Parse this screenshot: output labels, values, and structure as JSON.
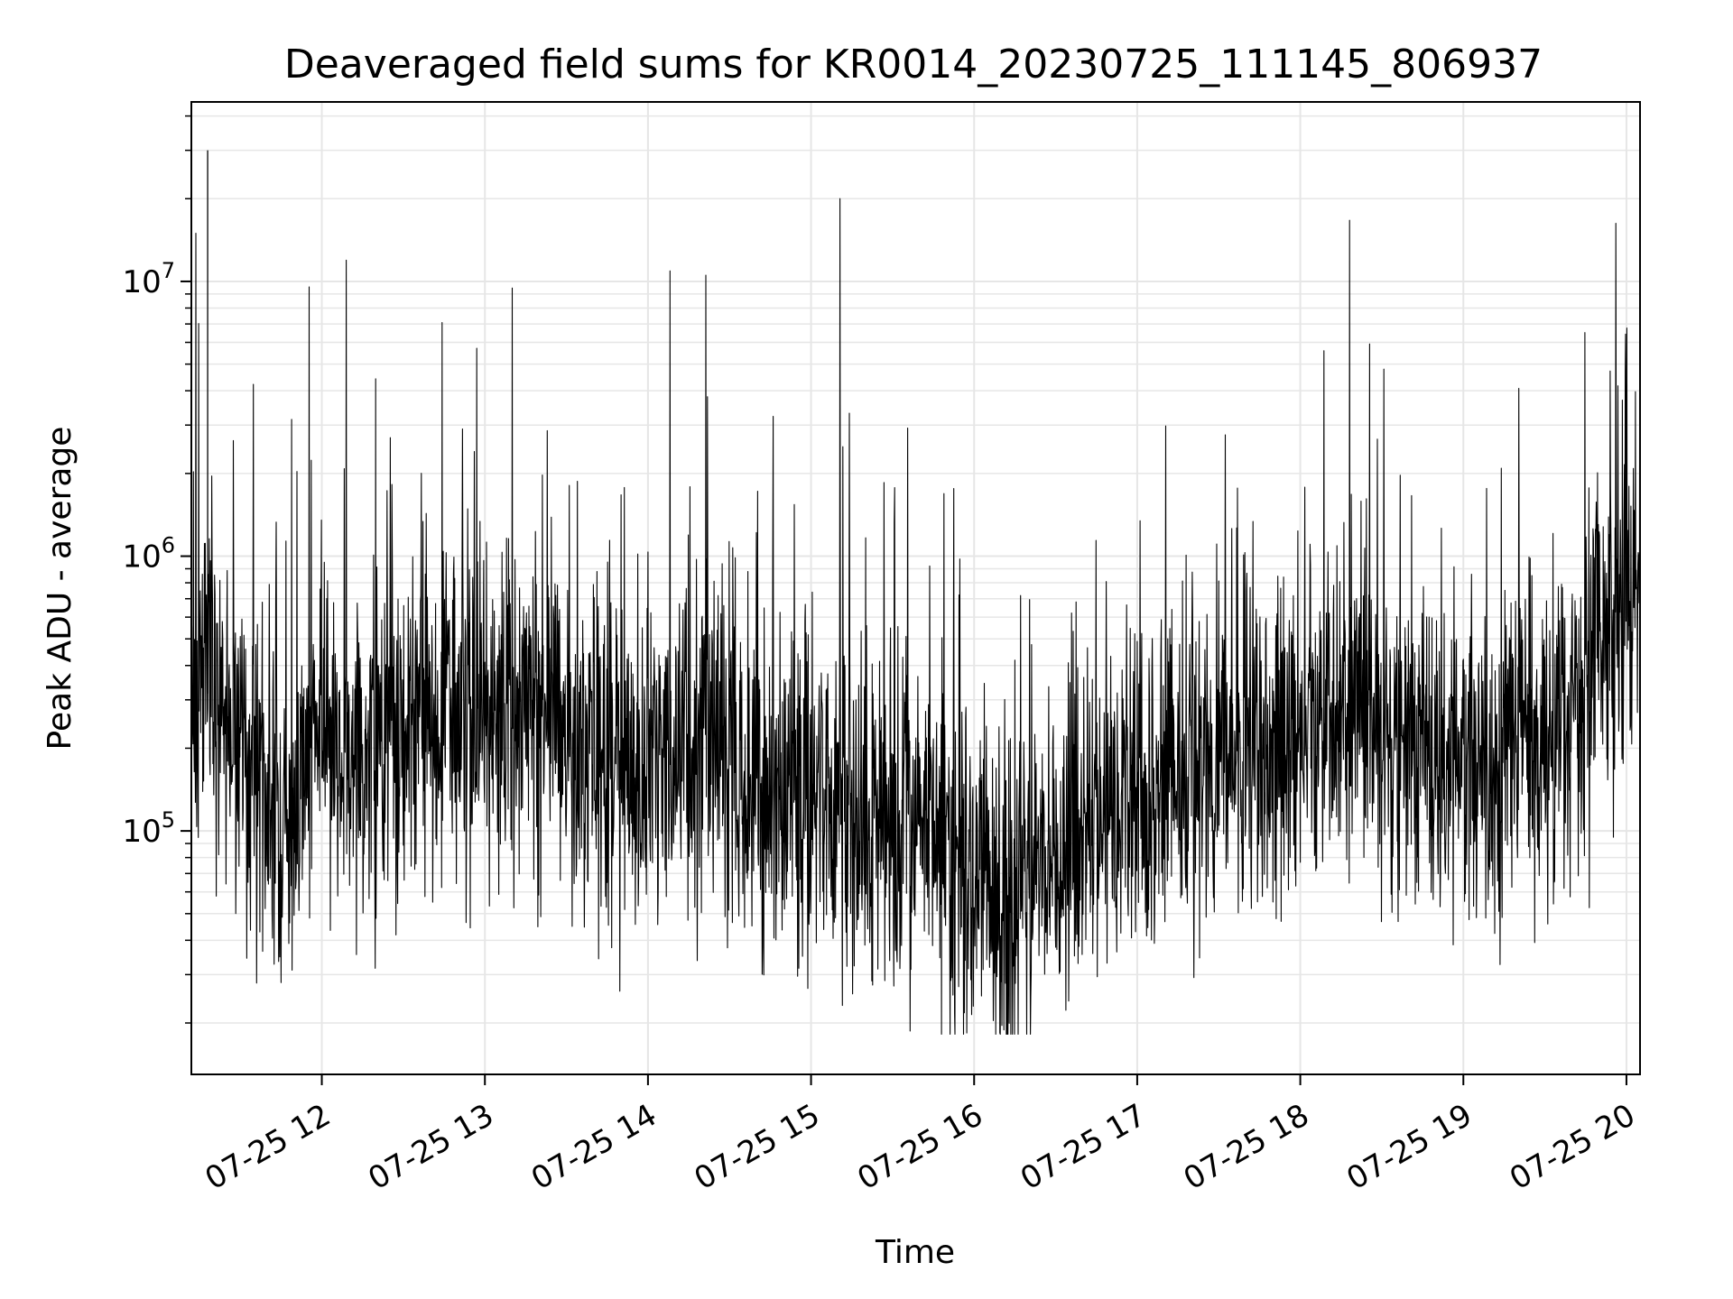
{
  "chart_data": {
    "type": "line",
    "title": "Deaveraged field sums for KR0014_20230725_111145_806937",
    "xlabel": "Time",
    "ylabel": "Peak ADU - average",
    "x_range": [
      "07-25 11:12",
      "07-25 20:05"
    ],
    "x_ticks": [
      "07-25 12",
      "07-25 13",
      "07-25 14",
      "07-25 15",
      "07-25 16",
      "07-25 17",
      "07-25 18",
      "07-25 19",
      "07-25 20"
    ],
    "y_scale": "log",
    "ylim": [
      13000,
      45000000
    ],
    "y_ticks": [
      {
        "base": "10",
        "exp": "5",
        "value": 100000
      },
      {
        "base": "10",
        "exp": "6",
        "value": 1000000
      },
      {
        "base": "10",
        "exp": "7",
        "value": 10000000
      }
    ],
    "grid": true,
    "line_color": "#000000",
    "grid_color": "#e6e6e6",
    "series": [
      {
        "name": "",
        "x": [
          "07-25 11:12",
          "07-25 11:15",
          "07-25 11:18",
          "07-25 11:21",
          "07-25 11:24",
          "07-25 11:30",
          "07-25 11:36",
          "07-25 11:42",
          "07-25 11:48",
          "07-25 11:54",
          "07-25 12:00",
          "07-25 12:06",
          "07-25 12:12",
          "07-25 12:18",
          "07-25 12:24",
          "07-25 12:30",
          "07-25 12:36",
          "07-25 12:42",
          "07-25 12:48",
          "07-25 12:54",
          "07-25 13:00",
          "07-25 13:06",
          "07-25 13:12",
          "07-25 13:18",
          "07-25 13:24",
          "07-25 13:30",
          "07-25 13:36",
          "07-25 13:42",
          "07-25 13:48",
          "07-25 13:54",
          "07-25 14:00",
          "07-25 14:06",
          "07-25 14:12",
          "07-25 14:18",
          "07-25 14:24",
          "07-25 14:30",
          "07-25 14:36",
          "07-25 14:42",
          "07-25 14:48",
          "07-25 14:54",
          "07-25 15:00",
          "07-25 15:06",
          "07-25 15:12",
          "07-25 15:18",
          "07-25 15:24",
          "07-25 15:30",
          "07-25 15:36",
          "07-25 15:42",
          "07-25 15:48",
          "07-25 15:54",
          "07-25 16:00",
          "07-25 16:06",
          "07-25 16:12",
          "07-25 16:18",
          "07-25 16:24",
          "07-25 16:30",
          "07-25 16:36",
          "07-25 16:42",
          "07-25 16:48",
          "07-25 16:54",
          "07-25 17:00",
          "07-25 17:06",
          "07-25 17:12",
          "07-25 17:18",
          "07-25 17:24",
          "07-25 17:30",
          "07-25 17:36",
          "07-25 17:42",
          "07-25 17:48",
          "07-25 17:54",
          "07-25 18:00",
          "07-25 18:06",
          "07-25 18:12",
          "07-25 18:18",
          "07-25 18:24",
          "07-25 18:30",
          "07-25 18:36",
          "07-25 18:42",
          "07-25 18:48",
          "07-25 18:54",
          "07-25 19:00",
          "07-25 19:06",
          "07-25 19:12",
          "07-25 19:18",
          "07-25 19:24",
          "07-25 19:30",
          "07-25 19:36",
          "07-25 19:42",
          "07-25 19:48",
          "07-25 19:54",
          "07-25 20:00",
          "07-25 20:04"
        ],
        "values": [
          200000,
          400000,
          30000000,
          250000,
          180000,
          220000,
          140000,
          110000,
          120000,
          150000,
          230000,
          200000,
          170000,
          190000,
          220000,
          260000,
          240000,
          230000,
          260000,
          250000,
          280000,
          260000,
          270000,
          300000,
          260000,
          200000,
          180000,
          160000,
          200000,
          180000,
          170000,
          160000,
          180000,
          200000,
          220000,
          190000,
          150000,
          140000,
          130000,
          120000,
          130000,
          140000,
          120000,
          110000,
          100000,
          130000,
          120000,
          110000,
          95000,
          80000,
          65000,
          60000,
          55000,
          60000,
          70000,
          80000,
          90000,
          100000,
          110000,
          120000,
          130000,
          140000,
          150000,
          160000,
          170000,
          180000,
          190000,
          200000,
          190000,
          210000,
          220000,
          260000,
          300000,
          280000,
          260000,
          230000,
          200000,
          180000,
          170000,
          160000,
          170000,
          180000,
          170000,
          180000,
          200000,
          230000,
          260000,
          330000,
          420000,
          520000,
          620000,
          700000
        ]
      }
    ]
  }
}
